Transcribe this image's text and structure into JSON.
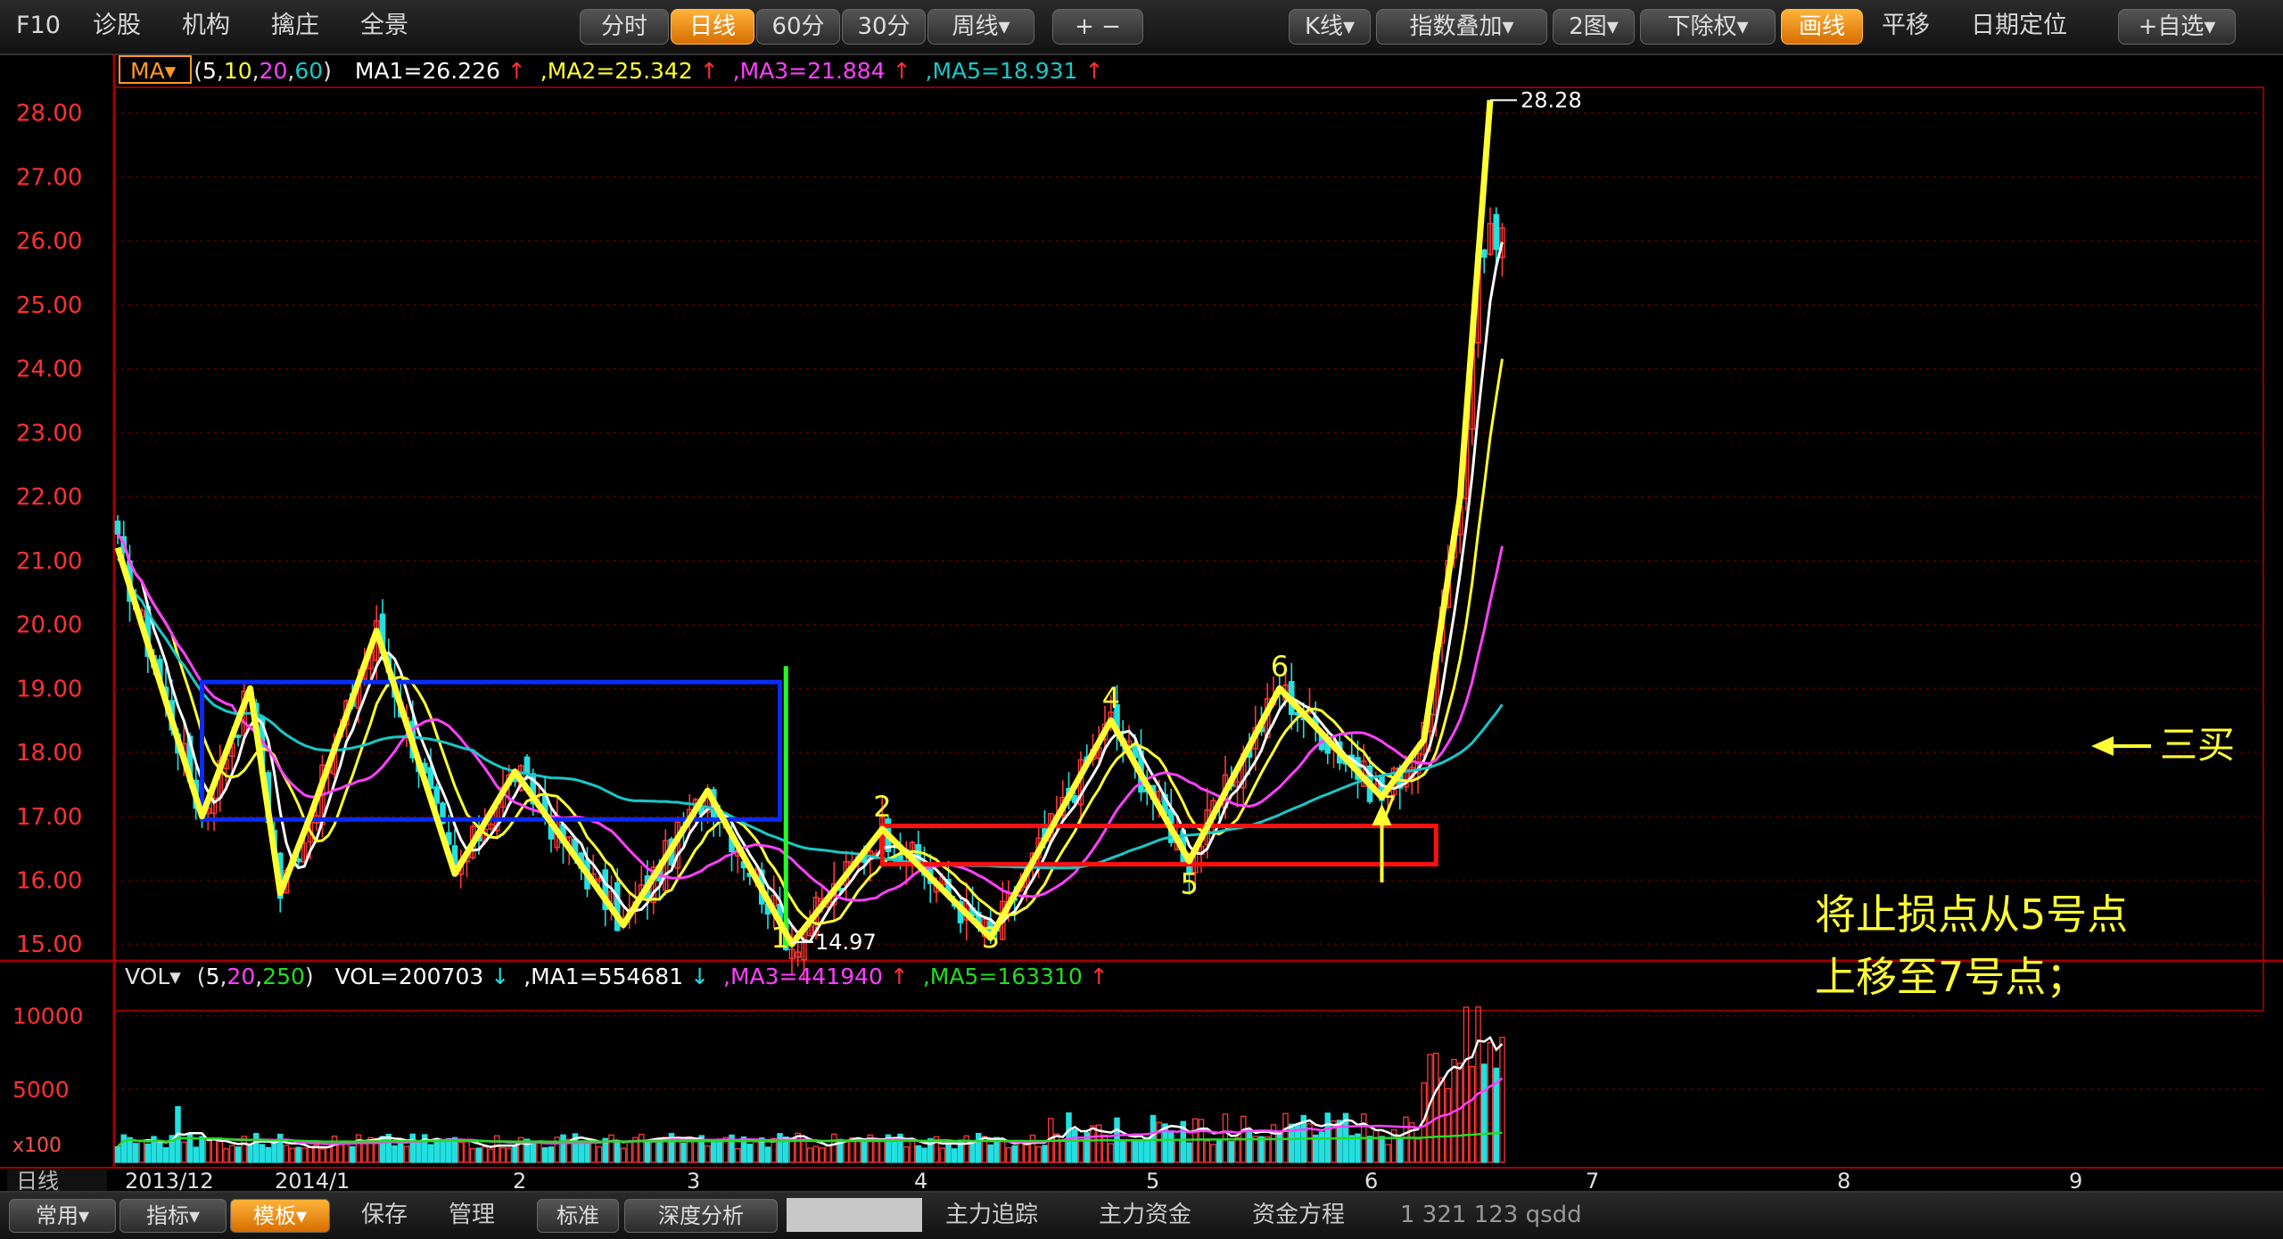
{
  "toolbar": {
    "left": [
      "F10",
      "诊股",
      "机构",
      "擒庄",
      "全景"
    ],
    "center": [
      "分时",
      "日线",
      "60分",
      "30分",
      "周线▾"
    ],
    "selected_period": "日线",
    "zoom": "+ −",
    "right": [
      "K线▾",
      "指数叠加▾",
      "2图▾",
      "下除权▾",
      "画线",
      "平移",
      "日期定位",
      "+自选▾"
    ]
  },
  "colors": {
    "up": "#ff3838",
    "down": "#22e0e0",
    "ma1": "#ffffff",
    "ma2": "#ffff30",
    "ma3": "#ff40ff",
    "ma5": "#18c8c8",
    "annot_yellow": "#ffff33",
    "box_blue": "#0a2bff",
    "box_red": "#ff1010",
    "line_green": "#22ff22"
  },
  "price_legend": {
    "tag": "MA",
    "params_prefix": "(",
    "params": [
      "5",
      "10",
      "20",
      "60"
    ],
    "params_suffix": ")",
    "ma1": "MA1=26.226",
    "ma2": ",MA2=25.342",
    "ma3": ",MA3=21.884",
    "ma5": ",MA5=18.931",
    "arrow": "↑"
  },
  "vol_legend": {
    "tag": "VOL",
    "params_prefix": "(",
    "params": [
      "5",
      "20",
      "250"
    ],
    "params_suffix": ")",
    "vol": "VOL=200703",
    "ma1": ",MA1=554681",
    "ma3": ",MA3=441940",
    "ma5": ",MA5=163310",
    "up_arrow": "↑",
    "down_arrow": "↓"
  },
  "chart_data": {
    "type": "candlestick",
    "price_axis": {
      "ticks": [
        "28.00",
        "27.00",
        "26.00",
        "25.00",
        "24.00",
        "23.00",
        "22.00",
        "21.00",
        "20.00",
        "19.00",
        "18.00",
        "17.00",
        "16.00",
        "15.00"
      ],
      "range": [
        14.85,
        28.4
      ]
    },
    "volume_axis": {
      "ticks": [
        "10000",
        "5000"
      ],
      "unit_label": "x100",
      "range": [
        0,
        11500
      ]
    },
    "x_labels": [
      "2013/12",
      "2014/1",
      "2",
      "3",
      "4",
      "5",
      "6",
      "7",
      "8",
      "9"
    ],
    "period_label": "日线",
    "last_index": 230,
    "high_label": "28.28",
    "low_label": "14.97",
    "wave_lines": [
      {
        "color": "#ffff33",
        "points": [
          [
            0,
            21.2
          ],
          [
            14,
            17.0
          ],
          [
            22,
            19.0
          ],
          [
            27,
            15.8
          ],
          [
            32,
            17.0
          ],
          [
            43,
            19.9
          ],
          [
            56,
            16.1
          ],
          [
            66,
            17.7
          ],
          [
            84,
            15.3
          ],
          [
            98,
            17.4
          ],
          [
            112,
            15.0
          ],
          [
            127,
            16.8
          ],
          [
            145,
            15.1
          ],
          [
            165,
            18.5
          ],
          [
            178,
            16.3
          ],
          [
            193,
            19.0
          ],
          [
            210,
            17.3
          ],
          [
            217,
            18.2
          ],
          [
            223,
            22.0
          ],
          [
            228,
            28.2
          ]
        ]
      }
    ],
    "annotations": {
      "wave_numbers": [
        {
          "label": "1",
          "x": 110,
          "y": 15.0
        },
        {
          "label": "2",
          "x": 127,
          "y": 17.05
        },
        {
          "label": "3",
          "x": 145,
          "y": 15.0
        },
        {
          "label": "4",
          "x": 165,
          "y": 18.75
        },
        {
          "label": "5",
          "x": 178,
          "y": 15.85
        },
        {
          "label": "6",
          "x": 193,
          "y": 19.25
        },
        {
          "label": "7",
          "x": 211,
          "y": 17.05
        }
      ],
      "blue_box": {
        "x": [
          14,
          110
        ],
        "y": [
          16.95,
          19.1
        ]
      },
      "red_box": {
        "x": [
          127,
          219
        ],
        "y": [
          16.25,
          16.85
        ]
      },
      "green_line": {
        "x": 111,
        "y": [
          14.95,
          19.35
        ]
      },
      "note_lines": [
        "将止损点从5号点",
        "上移至7号点；"
      ],
      "third_buy": "三买"
    }
  },
  "bottombar": {
    "buttons": [
      "常用▾",
      "指标▾",
      "模板▾"
    ],
    "selected": "模板▾",
    "items": [
      "保存",
      "管理",
      "标准",
      "深度分析",
      "主力追踪",
      "主力资金",
      "资金方程"
    ],
    "status": "1 321 123 qsdd"
  }
}
